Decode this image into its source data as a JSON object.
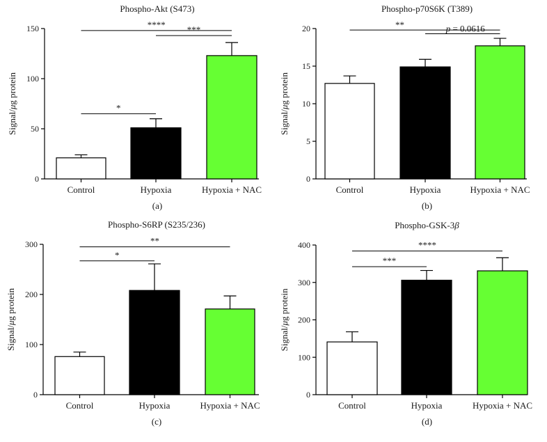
{
  "chart_data": [
    {
      "type": "bar",
      "panel_label": "(a)",
      "title": "Phospho-Akt (S473)",
      "xlabel": "",
      "ylabel": "Signal/μg protein",
      "ylim": [
        0,
        150
      ],
      "yticks": [
        0,
        50,
        100,
        150
      ],
      "categories": [
        "Control",
        "Hypoxia",
        "Hypoxia + NAC"
      ],
      "values": [
        21,
        51,
        123
      ],
      "errors": [
        3,
        9,
        13
      ],
      "bar_colors": [
        "#ffffff",
        "#000000",
        "#66ff33"
      ],
      "significance": [
        {
          "from": 0,
          "to": 1,
          "label": "*",
          "level": 65
        },
        {
          "from": 1,
          "to": 2,
          "label": "***",
          "level": 143
        },
        {
          "from": 0,
          "to": 2,
          "label": "****",
          "level": 148
        }
      ]
    },
    {
      "type": "bar",
      "panel_label": "(b)",
      "title": "Phospho-p70S6K (T389)",
      "xlabel": "",
      "ylabel": "Signal/μg protein",
      "ylim": [
        0,
        20
      ],
      "yticks": [
        0,
        5,
        10,
        15,
        20
      ],
      "categories": [
        "Control",
        "Hypoxia",
        "Hypoxia + NAC"
      ],
      "values": [
        12.7,
        14.9,
        17.7
      ],
      "errors": [
        1.0,
        1.0,
        1.0
      ],
      "bar_colors": [
        "#ffffff",
        "#000000",
        "#66ff33"
      ],
      "significance": [
        {
          "from": 1,
          "to": 2,
          "label": "p = 0.0616",
          "level": 19.3,
          "label_side": "left"
        },
        {
          "from": 0,
          "to": 2,
          "label": "**",
          "level": 19.8,
          "label_side": "left"
        }
      ]
    },
    {
      "type": "bar",
      "panel_label": "(c)",
      "title": "Phospho-S6RP (S235/236)",
      "xlabel": "",
      "ylabel": "Signal/μg protein",
      "ylim": [
        0,
        300
      ],
      "yticks": [
        0,
        100,
        200,
        300
      ],
      "categories": [
        "Control",
        "Hypoxia",
        "Hypoxia + NAC"
      ],
      "values": [
        76,
        208,
        171
      ],
      "errors": [
        9,
        53,
        26
      ],
      "bar_colors": [
        "#ffffff",
        "#000000",
        "#66ff33"
      ],
      "significance": [
        {
          "from": 0,
          "to": 1,
          "label": "*",
          "level": 267
        },
        {
          "from": 0,
          "to": 2,
          "label": "**",
          "level": 295
        }
      ]
    },
    {
      "type": "bar",
      "panel_label": "(d)",
      "title": "Phospho-GSK-3β",
      "xlabel": "",
      "ylabel": "Signal/μg protein",
      "ylim": [
        0,
        400
      ],
      "yticks": [
        0,
        100,
        200,
        300,
        400
      ],
      "categories": [
        "Control",
        "Hypoxia",
        "Hypoxia + NAC"
      ],
      "values": [
        141,
        306,
        331
      ],
      "errors": [
        27,
        26,
        35
      ],
      "bar_colors": [
        "#ffffff",
        "#000000",
        "#66ff33"
      ],
      "significance": [
        {
          "from": 0,
          "to": 1,
          "label": "***",
          "level": 342
        },
        {
          "from": 0,
          "to": 2,
          "label": "****",
          "level": 384
        }
      ]
    }
  ]
}
